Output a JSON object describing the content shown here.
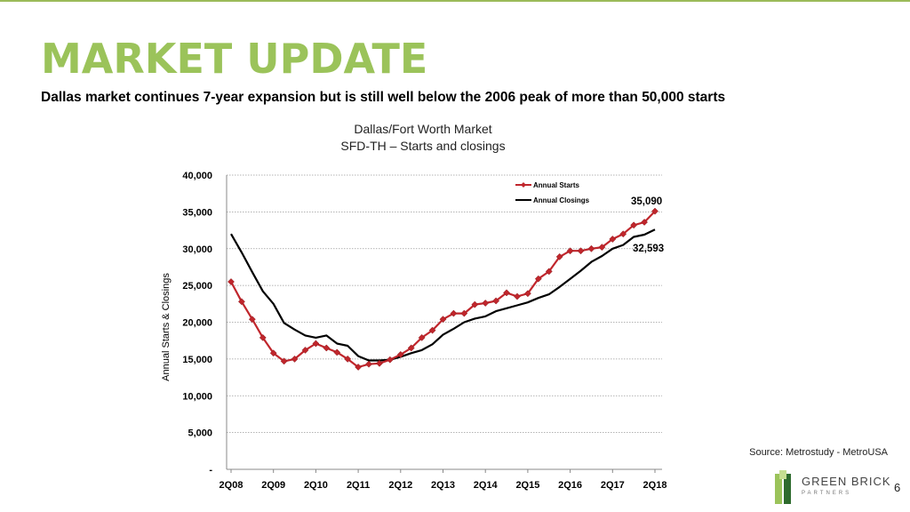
{
  "slide": {
    "title": "MARKET UPDATE",
    "subtitle": "Dallas market continues 7-year expansion but is still well below the 2006 peak of more than 50,000 starts",
    "chart_heading_line1": "Dallas/Fort Worth Market",
    "chart_heading_line2": "SFD-TH – Starts and closings",
    "source": "Source: Metrostudy - MetroUSA",
    "page_number": "6",
    "logo_name": "GREEN BRICK",
    "logo_sub": "PARTNERS"
  },
  "colors": {
    "accent": "#9bc35a",
    "starts": "#c0262c",
    "closings": "#000000"
  },
  "chart_data": {
    "type": "line",
    "ylabel": "Annual Starts & Closings",
    "xlabel": "",
    "ylim": [
      0,
      40000
    ],
    "y_ticks": [
      0,
      5000,
      10000,
      15000,
      20000,
      25000,
      30000,
      35000,
      40000
    ],
    "y_tick_labels": [
      "-",
      "5,000",
      "10,000",
      "15,000",
      "20,000",
      "25,000",
      "30,000",
      "35,000",
      "40,000"
    ],
    "x_tick_labels": [
      "2Q08",
      "2Q09",
      "2Q10",
      "2Q11",
      "2Q12",
      "2Q13",
      "2Q14",
      "2Q15",
      "2Q16",
      "2Q17",
      "2Q18"
    ],
    "legend_position": "top-right",
    "grid": true,
    "series": [
      {
        "name": "Annual Starts",
        "marker": "diamond",
        "values": [
          25500,
          22800,
          20400,
          17900,
          15800,
          14700,
          15000,
          16200,
          17100,
          16500,
          15900,
          15000,
          13900,
          14300,
          14400,
          14900,
          15600,
          16500,
          17900,
          18900,
          20400,
          21200,
          21200,
          22400,
          22600,
          22900,
          24000,
          23500,
          23900,
          25900,
          26900,
          28900,
          29700,
          29700,
          30000,
          30200,
          31300,
          32000,
          33200,
          33600,
          35090
        ]
      },
      {
        "name": "Annual Closings",
        "marker": "none",
        "values": [
          32000,
          29500,
          26800,
          24200,
          22500,
          19900,
          19000,
          18200,
          17900,
          18200,
          17100,
          16800,
          15400,
          14800,
          14800,
          14900,
          15300,
          15800,
          16200,
          17000,
          18300,
          19100,
          20000,
          20500,
          20800,
          21500,
          21900,
          22300,
          22700,
          23300,
          23800,
          24800,
          25900,
          27000,
          28200,
          29000,
          30000,
          30500,
          31600,
          31900,
          32593
        ]
      }
    ],
    "end_labels": [
      "35,090",
      "32,593"
    ]
  }
}
